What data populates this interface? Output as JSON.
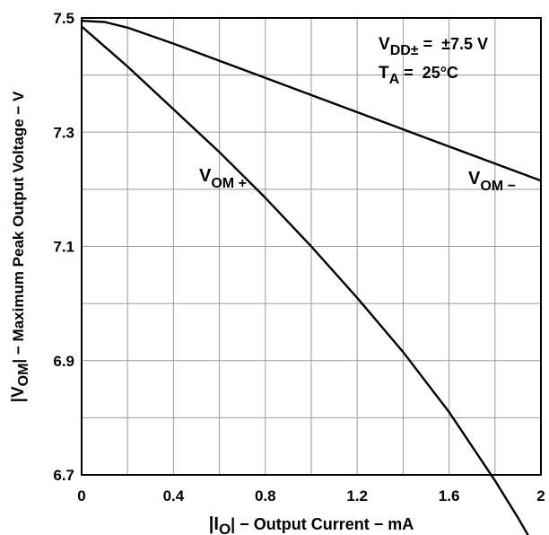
{
  "chart_data": {
    "type": "line",
    "x": [
      0,
      0.1,
      0.2,
      0.4,
      0.6,
      0.8,
      1.0,
      1.2,
      1.4,
      1.6,
      1.8,
      1.9,
      2.0
    ],
    "series": [
      {
        "name": "VOM+",
        "label_main": "V",
        "label_sub": "OM +",
        "values": [
          7.485,
          7.45,
          7.415,
          7.34,
          7.265,
          7.185,
          7.1,
          7.01,
          6.915,
          6.81,
          6.69,
          6.625,
          6.555
        ]
      },
      {
        "name": "VOM−",
        "label_main": "V",
        "label_sub": "OM −",
        "values": [
          7.495,
          7.493,
          7.483,
          7.455,
          7.425,
          7.395,
          7.365,
          7.335,
          7.305,
          7.275,
          7.245,
          7.23,
          7.215
        ]
      }
    ],
    "xlabel_main": "|I",
    "xlabel_sub": "O",
    "xlabel_rest": "| − Output Current − mA",
    "ylabel_main": "|V",
    "ylabel_sub": "OM",
    "ylabel_rest": "| − Maximum Peak Output Voltage − V",
    "xticks": [
      "0",
      "0.4",
      "0.8",
      "1.2",
      "1.6",
      "2"
    ],
    "xtick_values": [
      0,
      0.4,
      0.8,
      1.2,
      1.6,
      2.0
    ],
    "yticks": [
      "6.7",
      "6.9",
      "7.1",
      "7.3",
      "7.5"
    ],
    "ytick_values": [
      6.7,
      6.9,
      7.1,
      7.3,
      7.5
    ],
    "xlim": [
      0,
      2
    ],
    "ylim": [
      6.7,
      7.5
    ],
    "grid": true,
    "conditions": [
      {
        "main": "V",
        "sub": "DD±",
        "rest": " =  ±7.5 V"
      },
      {
        "main": "T",
        "sub": "A",
        "rest": " =  25°C"
      }
    ],
    "colors": {
      "line": "#000000",
      "grid": "#9a9a9a",
      "frame": "#000000"
    }
  }
}
